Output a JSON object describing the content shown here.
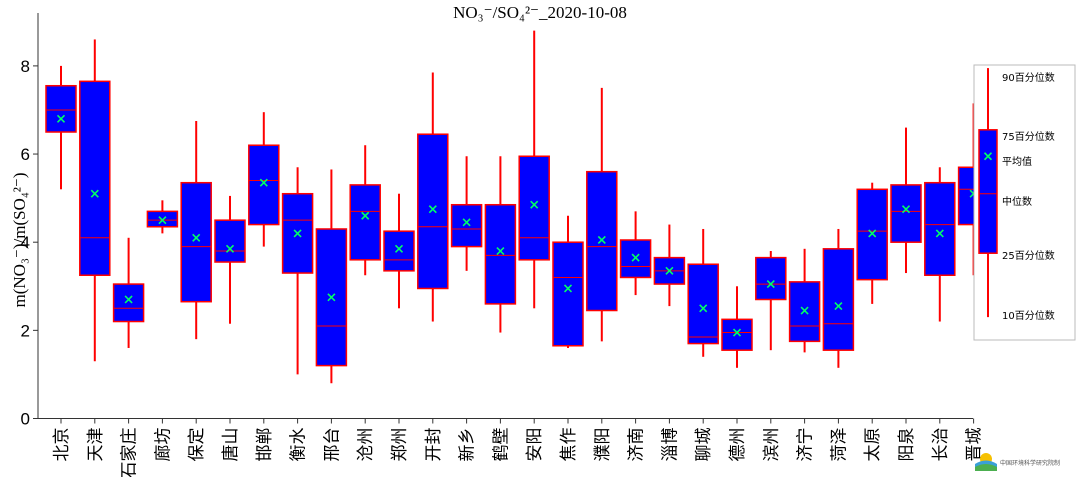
{
  "chart_data": {
    "type": "box",
    "title": "NO₃⁻/SO₄²⁻_2020-10-08",
    "ylabel": "m(NO₃⁻)/m(SO₄²⁻)",
    "ylim": [
      0,
      9.2
    ],
    "yticks": [
      0,
      2,
      4,
      6,
      8
    ],
    "grid": false,
    "categories": [
      "北京",
      "天津",
      "石家庄",
      "廊坊",
      "保定",
      "唐山",
      "邯郸",
      "衡水",
      "邢台",
      "沧州",
      "郑州",
      "开封",
      "新乡",
      "鹤壁",
      "安阳",
      "焦作",
      "濮阳",
      "济南",
      "淄博",
      "聊城",
      "德州",
      "滨州",
      "济宁",
      "菏泽",
      "太原",
      "阳泉",
      "长治",
      "晋城"
    ],
    "series": [
      {
        "p10": 5.2,
        "p25": 6.5,
        "median": 7.0,
        "mean": 6.8,
        "p75": 7.55,
        "p90": 8.0
      },
      {
        "p10": 1.3,
        "p25": 3.25,
        "median": 4.1,
        "mean": 5.1,
        "p75": 7.65,
        "p90": 8.6
      },
      {
        "p10": 1.6,
        "p25": 2.2,
        "median": 2.5,
        "mean": 2.7,
        "p75": 3.05,
        "p90": 4.1
      },
      {
        "p10": 4.2,
        "p25": 4.35,
        "median": 4.5,
        "mean": 4.5,
        "p75": 4.7,
        "p90": 4.95
      },
      {
        "p10": 1.8,
        "p25": 2.65,
        "median": 3.9,
        "mean": 4.1,
        "p75": 5.35,
        "p90": 6.75
      },
      {
        "p10": 2.15,
        "p25": 3.55,
        "median": 3.8,
        "mean": 3.85,
        "p75": 4.5,
        "p90": 5.05
      },
      {
        "p10": 3.9,
        "p25": 4.4,
        "median": 5.4,
        "mean": 5.35,
        "p75": 6.2,
        "p90": 6.95
      },
      {
        "p10": 1.0,
        "p25": 3.3,
        "median": 4.5,
        "mean": 4.2,
        "p75": 5.1,
        "p90": 5.7
      },
      {
        "p10": 0.8,
        "p25": 1.2,
        "median": 2.1,
        "mean": 2.75,
        "p75": 4.3,
        "p90": 5.65
      },
      {
        "p10": 3.25,
        "p25": 3.6,
        "median": 4.7,
        "mean": 4.6,
        "p75": 5.3,
        "p90": 6.2
      },
      {
        "p10": 2.5,
        "p25": 3.35,
        "median": 3.6,
        "mean": 3.85,
        "p75": 4.25,
        "p90": 5.1
      },
      {
        "p10": 2.2,
        "p25": 2.95,
        "median": 4.35,
        "mean": 4.75,
        "p75": 6.45,
        "p90": 7.85
      },
      {
        "p10": 3.35,
        "p25": 3.9,
        "median": 4.3,
        "mean": 4.45,
        "p75": 4.85,
        "p90": 5.95
      },
      {
        "p10": 1.95,
        "p25": 2.6,
        "median": 3.7,
        "mean": 3.8,
        "p75": 4.85,
        "p90": 5.95
      },
      {
        "p10": 2.5,
        "p25": 3.6,
        "median": 4.1,
        "mean": 4.85,
        "p75": 5.95,
        "p90": 8.8
      },
      {
        "p10": 1.6,
        "p25": 1.65,
        "median": 3.2,
        "mean": 2.95,
        "p75": 4.0,
        "p90": 4.6
      },
      {
        "p10": 1.75,
        "p25": 2.45,
        "median": 3.9,
        "mean": 4.05,
        "p75": 5.6,
        "p90": 7.5
      },
      {
        "p10": 2.8,
        "p25": 3.2,
        "median": 3.45,
        "mean": 3.65,
        "p75": 4.05,
        "p90": 4.7
      },
      {
        "p10": 2.55,
        "p25": 3.05,
        "median": 3.35,
        "mean": 3.35,
        "p75": 3.65,
        "p90": 4.4
      },
      {
        "p10": 1.4,
        "p25": 1.7,
        "median": 1.85,
        "mean": 2.5,
        "p75": 3.5,
        "p90": 4.3
      },
      {
        "p10": 1.15,
        "p25": 1.55,
        "median": 1.95,
        "mean": 1.95,
        "p75": 2.25,
        "p90": 3.0
      },
      {
        "p10": 1.55,
        "p25": 2.7,
        "median": 3.05,
        "mean": 3.05,
        "p75": 3.65,
        "p90": 3.8
      },
      {
        "p10": 1.5,
        "p25": 1.75,
        "median": 2.1,
        "mean": 2.45,
        "p75": 3.1,
        "p90": 3.85
      },
      {
        "p10": 1.15,
        "p25": 1.55,
        "median": 2.15,
        "mean": 2.55,
        "p75": 3.85,
        "p90": 4.3
      },
      {
        "p10": 2.6,
        "p25": 3.15,
        "median": 4.25,
        "mean": 4.2,
        "p75": 5.2,
        "p90": 5.35
      },
      {
        "p10": 3.3,
        "p25": 4.0,
        "median": 4.7,
        "mean": 4.75,
        "p75": 5.3,
        "p90": 6.6
      },
      {
        "p10": 2.2,
        "p25": 3.25,
        "median": 4.4,
        "mean": 4.2,
        "p75": 5.35,
        "p90": 5.7
      },
      {
        "p10": 3.25,
        "p25": 4.4,
        "median": 5.2,
        "mean": 5.1,
        "p75": 5.7,
        "p90": 7.15
      }
    ],
    "legend": {
      "position": "right",
      "labels": [
        "90百分位数",
        "75百分位数",
        "平均值",
        "中位数",
        "25百分位数",
        "10百分位数"
      ]
    },
    "colors": {
      "box_fill": "#0000ff",
      "box_edge": "#ff0000",
      "whisker": "#ff0000",
      "median": "#ff0000",
      "mean_marker": "#00ff66"
    }
  },
  "footer": {
    "logo_text": "中国环境科学研究院制"
  }
}
